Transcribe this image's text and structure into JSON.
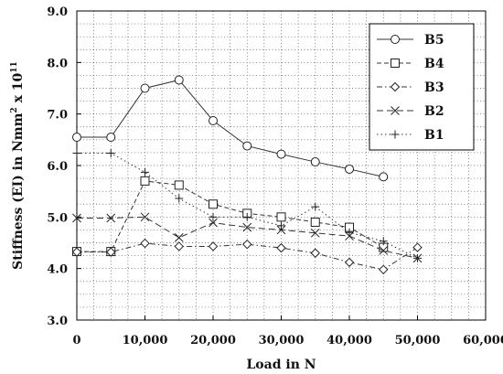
{
  "chart_data": {
    "type": "line",
    "xlabel": "Load in N",
    "ylabel_main": "Stiffness (EI) in Nmm",
    "ylabel_sup1": "2",
    "ylabel_mid": " x 10",
    "ylabel_sup2": "11",
    "xlim": [
      0,
      60000
    ],
    "ylim": [
      3.0,
      9.0
    ],
    "x_ticks": [
      0,
      10000,
      20000,
      30000,
      40000,
      50000,
      60000
    ],
    "x_tick_labels": [
      "0",
      "10,000",
      "20,000",
      "30,000",
      "40,000",
      "50,000",
      "60,000"
    ],
    "y_ticks": [
      3.0,
      4.0,
      5.0,
      6.0,
      7.0,
      8.0,
      9.0
    ],
    "y_tick_labels": [
      "3.0",
      "4.0",
      "5.0",
      "6.0",
      "7.0",
      "8.0",
      "9.0"
    ],
    "grid": true,
    "legend_position": "top-right",
    "series": [
      {
        "name": "B5",
        "marker": "circle",
        "dash": "solid",
        "x": [
          0,
          5000,
          10000,
          15000,
          20000,
          25000,
          30000,
          35000,
          40000,
          45000
        ],
        "y": [
          6.55,
          6.55,
          7.5,
          7.66,
          6.87,
          6.38,
          6.22,
          6.07,
          5.93,
          5.78
        ]
      },
      {
        "name": "B4",
        "marker": "square",
        "dash": "dashed",
        "x": [
          0,
          5000,
          10000,
          15000,
          20000,
          25000,
          30000,
          35000,
          40000,
          45000
        ],
        "y": [
          4.33,
          4.33,
          5.7,
          5.62,
          5.25,
          5.07,
          5.0,
          4.9,
          4.8,
          4.41
        ]
      },
      {
        "name": "B3",
        "marker": "diamond",
        "dash": "dash-dot",
        "x": [
          0,
          5000,
          10000,
          15000,
          20000,
          25000,
          30000,
          35000,
          40000,
          45000,
          50000
        ],
        "y": [
          4.32,
          4.32,
          4.49,
          4.43,
          4.43,
          4.47,
          4.4,
          4.3,
          4.12,
          3.98,
          4.41
        ]
      },
      {
        "name": "B2",
        "marker": "x",
        "dash": "long-dash",
        "x": [
          0,
          5000,
          10000,
          15000,
          20000,
          25000,
          30000,
          35000,
          40000,
          45000,
          50000
        ],
        "y": [
          4.98,
          4.98,
          5.0,
          4.6,
          4.89,
          4.8,
          4.75,
          4.69,
          4.63,
          4.35,
          4.2
        ]
      },
      {
        "name": "B1",
        "marker": "plus",
        "dash": "dotted",
        "x": [
          0,
          5000,
          10000,
          15000,
          20000,
          25000,
          30000,
          35000,
          40000,
          45000,
          50000
        ],
        "y": [
          6.24,
          6.24,
          5.87,
          5.36,
          5.0,
          5.0,
          4.83,
          5.2,
          4.7,
          4.53,
          4.2
        ]
      }
    ]
  }
}
